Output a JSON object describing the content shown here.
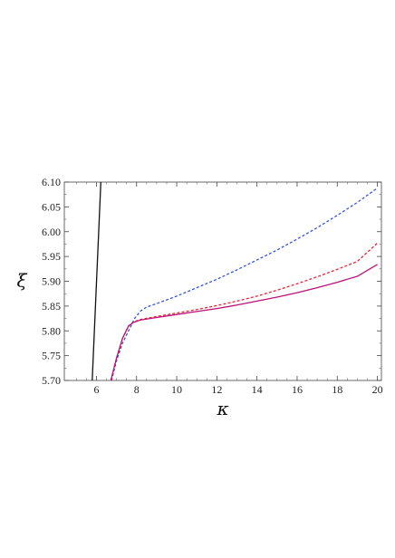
{
  "chart_data": {
    "type": "line",
    "xlabel": "κ",
    "ylabel": "ξ",
    "xlim": [
      4.4,
      20.2
    ],
    "ylim": [
      5.7,
      6.1
    ],
    "xticks": [
      6,
      8,
      10,
      12,
      14,
      16,
      18,
      20
    ],
    "xtick_labels": [
      "6",
      "8",
      "10",
      "12",
      "14",
      "16",
      "18",
      "20"
    ],
    "yticks": [
      5.7,
      5.75,
      5.8,
      5.85,
      5.9,
      5.95,
      6.0,
      6.05,
      6.1
    ],
    "ytick_labels": [
      "5.70",
      "5.75",
      "5.80",
      "5.85",
      "5.90",
      "5.95",
      "6.00",
      "6.05",
      "6.10"
    ],
    "grid": false,
    "series": [
      {
        "color": "#111111",
        "dash": "solid",
        "x": [
          5.79,
          6.22
        ],
        "y": [
          5.7,
          6.1
        ]
      },
      {
        "color": "#3355dd",
        "dash": "dashed",
        "x": [
          6.75,
          7.0,
          7.3,
          7.6,
          7.9,
          8.2,
          8.5,
          9,
          10,
          11,
          12,
          13,
          14,
          15,
          16,
          17,
          18,
          19,
          20
        ],
        "y": [
          5.7,
          5.74,
          5.775,
          5.8,
          5.825,
          5.84,
          5.848,
          5.855,
          5.87,
          5.887,
          5.904,
          5.923,
          5.943,
          5.963,
          5.985,
          6.008,
          6.033,
          6.059,
          6.088
        ]
      },
      {
        "color": "#ee2233",
        "dash": "dashed",
        "x": [
          6.72,
          7.0,
          7.3,
          7.6,
          7.85,
          8.2,
          9,
          10,
          11,
          12,
          13,
          14,
          15,
          16,
          17,
          18,
          19,
          20
        ],
        "y": [
          5.7,
          5.745,
          5.785,
          5.81,
          5.818,
          5.823,
          5.829,
          5.836,
          5.843,
          5.851,
          5.86,
          5.87,
          5.882,
          5.895,
          5.909,
          5.924,
          5.94,
          5.977
        ]
      },
      {
        "color": "#bb1177",
        "dash": "solid",
        "x": [
          6.72,
          7.0,
          7.3,
          7.6,
          7.85,
          8.2,
          9,
          10,
          11,
          12,
          13,
          14,
          15,
          16,
          17,
          18,
          19,
          20
        ],
        "y": [
          5.7,
          5.745,
          5.785,
          5.81,
          5.817,
          5.822,
          5.827,
          5.833,
          5.839,
          5.845,
          5.852,
          5.86,
          5.868,
          5.877,
          5.887,
          5.898,
          5.91,
          5.934
        ]
      }
    ]
  }
}
